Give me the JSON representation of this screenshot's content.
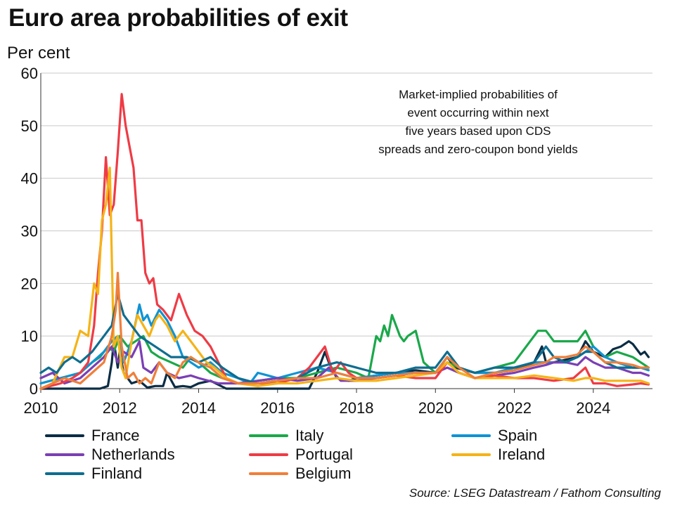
{
  "title": "Euro area probabilities of exit",
  "y_unit": "Per cent",
  "annotation": [
    "Market-implied probabilities of",
    "event occurring within next",
    "five years based upon CDS",
    "spreads and zero-coupon bond yields"
  ],
  "source": "Source: LSEG Datastream / Fathom Consulting",
  "chart_data": {
    "type": "line",
    "title": "Euro area probabilities of exit",
    "ylabel": "Per cent",
    "xlabel": "",
    "xlim": [
      2010,
      2025.5
    ],
    "ylim": [
      0,
      60
    ],
    "x_ticks": [
      2010,
      2012,
      2014,
      2016,
      2018,
      2020,
      2022,
      2024
    ],
    "y_ticks": [
      0,
      10,
      20,
      30,
      40,
      50,
      60
    ],
    "grid": "horizontal",
    "legend_position": "bottom",
    "series": [
      {
        "name": "France",
        "color": "#0b2d45",
        "x": [
          2010.0,
          2011.5,
          2011.7,
          2011.8,
          2011.85,
          2011.95,
          2012.0,
          2012.1,
          2012.2,
          2012.3,
          2012.5,
          2012.7,
          2012.9,
          2013.1,
          2013.2,
          2013.4,
          2013.6,
          2013.8,
          2014.0,
          2014.3,
          2014.7,
          2016.8,
          2017.0,
          2017.1,
          2017.2,
          2017.3,
          2017.5,
          2017.8,
          2018.0,
          2018.5,
          2019.0,
          2019.5,
          2020.0,
          2020.3,
          2020.5,
          2021.0,
          2021.5,
          2022.0,
          2022.5,
          2022.7,
          2022.8,
          2023.0,
          2023.3,
          2023.6,
          2023.8,
          2024.0,
          2024.3,
          2024.5,
          2024.7,
          2024.9,
          2025.0,
          2025.2,
          2025.3,
          2025.4
        ],
        "y": [
          0,
          0,
          0.5,
          5,
          9,
          4,
          7,
          3,
          2,
          1,
          1.5,
          0.2,
          0.5,
          0.5,
          3,
          0.3,
          0.5,
          0.3,
          1,
          1.5,
          0,
          0,
          3,
          5,
          7,
          5,
          2,
          1.5,
          2,
          2.5,
          3,
          3.5,
          3,
          6,
          4,
          3,
          3,
          3.5,
          5,
          8,
          5,
          5,
          5.5,
          6,
          9,
          7,
          6,
          7.5,
          8,
          9,
          8.5,
          6.5,
          7,
          6
        ]
      },
      {
        "name": "Italy",
        "color": "#1aa84a",
        "x": [
          2010.0,
          2010.5,
          2011.0,
          2011.3,
          2011.5,
          2011.7,
          2011.85,
          2012.0,
          2012.2,
          2012.4,
          2012.6,
          2012.8,
          2013.0,
          2013.3,
          2013.6,
          2013.8,
          2014.0,
          2014.3,
          2014.6,
          2015.0,
          2015.5,
          2016.0,
          2016.5,
          2017.0,
          2017.5,
          2018.0,
          2018.3,
          2018.5,
          2018.6,
          2018.7,
          2018.8,
          2018.9,
          2019.0,
          2019.1,
          2019.2,
          2019.3,
          2019.5,
          2019.7,
          2020.0,
          2020.3,
          2020.6,
          2021.0,
          2021.5,
          2022.0,
          2022.3,
          2022.6,
          2022.8,
          2023.0,
          2023.3,
          2023.6,
          2023.8,
          2024.0,
          2024.3,
          2024.6,
          2025.0,
          2025.2,
          2025.4
        ],
        "y": [
          1,
          2,
          3,
          5,
          6,
          8,
          7,
          10,
          8,
          9,
          10,
          7,
          6,
          5,
          4,
          6,
          5,
          3,
          2,
          1,
          1.5,
          2,
          2,
          3,
          4,
          3,
          2,
          10,
          9,
          12,
          10,
          14,
          12,
          10,
          9,
          10,
          11,
          5,
          3,
          5,
          4,
          3,
          4,
          5,
          8,
          11,
          11,
          9,
          9,
          9,
          11,
          8,
          6,
          7,
          6,
          5,
          4
        ]
      },
      {
        "name": "Spain",
        "color": "#0f93d4",
        "x": [
          2010.0,
          2010.5,
          2011.0,
          2011.3,
          2011.6,
          2011.8,
          2011.95,
          2012.1,
          2012.3,
          2012.5,
          2012.6,
          2012.7,
          2012.8,
          2013.0,
          2013.2,
          2013.4,
          2013.6,
          2013.8,
          2014.0,
          2014.3,
          2014.6,
          2015.0,
          2015.3,
          2015.5,
          2016.0,
          2016.5,
          2017.0,
          2017.5,
          2018.0,
          2018.5,
          2019.0,
          2019.5,
          2020.0,
          2020.3,
          2020.6,
          2021.0,
          2021.5,
          2022.0,
          2022.5,
          2022.8,
          2023.0,
          2023.3,
          2023.6,
          2023.8,
          2024.0,
          2024.3,
          2024.6,
          2025.0,
          2025.2,
          2025.4
        ],
        "y": [
          1,
          2,
          3,
          5,
          7,
          9,
          10,
          5,
          9,
          16,
          13,
          14,
          12,
          15,
          13,
          10,
          6,
          5,
          4,
          5,
          3,
          2,
          1,
          3,
          2,
          3,
          4,
          3,
          2,
          2.5,
          3,
          3,
          3,
          6,
          4,
          3,
          3,
          4,
          5,
          5,
          5,
          5,
          6,
          7,
          8,
          6,
          5,
          4,
          4,
          3.5
        ]
      },
      {
        "name": "Netherlands",
        "color": "#7b3fb5",
        "x": [
          2010.0,
          2010.3,
          2010.6,
          2011.0,
          2011.3,
          2011.6,
          2011.8,
          2011.95,
          2012.1,
          2012.3,
          2012.5,
          2012.6,
          2012.8,
          2013.0,
          2013.2,
          2013.5,
          2013.8,
          2014.0,
          2014.5,
          2015.0,
          2015.5,
          2016.0,
          2016.5,
          2017.0,
          2017.3,
          2017.6,
          2018.0,
          2018.5,
          2019.0,
          2019.5,
          2020.0,
          2020.3,
          2020.6,
          2021.0,
          2021.5,
          2022.0,
          2022.5,
          2022.8,
          2023.0,
          2023.3,
          2023.6,
          2023.8,
          2024.0,
          2024.3,
          2024.6,
          2025.0,
          2025.2,
          2025.4
        ],
        "y": [
          2,
          3,
          1,
          2,
          4,
          6,
          8,
          5,
          7,
          6,
          9,
          4,
          3,
          5,
          3,
          2,
          2.5,
          2,
          1,
          1,
          1.5,
          2,
          1.5,
          2,
          4,
          1.5,
          1.5,
          2,
          2.5,
          3,
          3,
          4,
          3,
          2,
          2.5,
          3,
          4,
          4.5,
          5,
          5,
          4.5,
          6,
          5,
          4,
          4,
          3,
          3,
          2.5
        ]
      },
      {
        "name": "Portugal",
        "color": "#ef3b45",
        "x": [
          2010.0,
          2010.5,
          2010.8,
          2011.0,
          2011.2,
          2011.35,
          2011.45,
          2011.55,
          2011.65,
          2011.75,
          2011.85,
          2011.95,
          2012.05,
          2012.15,
          2012.25,
          2012.35,
          2012.45,
          2012.55,
          2012.65,
          2012.75,
          2012.85,
          2012.95,
          2013.1,
          2013.3,
          2013.5,
          2013.7,
          2013.9,
          2014.1,
          2014.3,
          2014.5,
          2014.7,
          2015.0,
          2015.5,
          2016.0,
          2016.5,
          2016.8,
          2017.0,
          2017.2,
          2017.4,
          2017.6,
          2017.8,
          2018.0,
          2018.5,
          2019.0,
          2019.5,
          2020.0,
          2020.3,
          2020.6,
          2021.0,
          2021.5,
          2022.0,
          2022.5,
          2023.0,
          2023.5,
          2023.8,
          2024.0,
          2024.3,
          2024.6,
          2025.0,
          2025.2,
          2025.4
        ],
        "y": [
          0,
          1,
          2,
          3,
          5,
          12,
          22,
          30,
          44,
          33,
          35,
          45,
          56,
          50,
          46,
          42,
          32,
          32,
          22,
          20,
          21,
          16,
          15,
          13,
          18,
          14,
          11,
          10,
          8,
          5,
          2,
          1,
          1,
          1,
          2,
          4,
          6,
          8,
          3,
          5,
          3,
          2,
          2,
          2.5,
          2,
          2,
          5,
          3,
          2,
          2.5,
          2,
          2,
          1.5,
          2,
          4,
          1,
          1,
          0.5,
          0.8,
          1,
          0.8
        ]
      },
      {
        "name": "Ireland",
        "color": "#f5b316",
        "x": [
          2010.0,
          2010.3,
          2010.6,
          2010.8,
          2011.0,
          2011.2,
          2011.35,
          2011.45,
          2011.55,
          2011.65,
          2011.75,
          2011.85,
          2011.95,
          2012.05,
          2012.15,
          2012.3,
          2012.45,
          2012.6,
          2012.75,
          2012.9,
          2013.0,
          2013.2,
          2013.4,
          2013.6,
          2013.8,
          2014.0,
          2014.2,
          2014.4,
          2014.7,
          2015.0,
          2015.5,
          2016.0,
          2016.5,
          2017.0,
          2017.5,
          2018.0,
          2018.5,
          2019.0,
          2019.5,
          2020.0,
          2020.3,
          2020.6,
          2021.0,
          2021.5,
          2022.0,
          2022.5,
          2023.0,
          2023.5,
          2023.8,
          2024.0,
          2024.3,
          2024.6,
          2025.0,
          2025.2,
          2025.4
        ],
        "y": [
          0,
          1,
          6,
          6,
          11,
          10,
          20,
          18,
          32,
          35,
          42,
          8,
          10,
          4,
          2,
          9,
          14,
          12,
          10,
          13,
          14,
          12,
          9,
          11,
          9,
          7,
          5,
          4,
          2,
          1,
          0.5,
          1,
          1,
          1.5,
          2,
          1.5,
          1.5,
          2,
          2.5,
          3,
          5,
          3,
          2,
          2,
          2,
          2.5,
          2,
          1.5,
          2,
          2,
          1.5,
          1.5,
          1.5,
          1.5,
          1
        ]
      },
      {
        "name": "Finland",
        "color": "#0e6d8f",
        "x": [
          2010.0,
          2010.2,
          2010.4,
          2010.6,
          2010.8,
          2011.0,
          2011.3,
          2011.6,
          2011.8,
          2011.95,
          2012.1,
          2012.3,
          2012.5,
          2012.7,
          2012.9,
          2013.1,
          2013.3,
          2013.5,
          2013.7,
          2014.0,
          2014.3,
          2014.6,
          2015.0,
          2015.5,
          2016.0,
          2016.5,
          2017.0,
          2017.5,
          2018.0,
          2018.5,
          2019.0,
          2019.5,
          2020.0,
          2020.3,
          2020.6,
          2021.0,
          2021.5,
          2022.0,
          2022.5,
          2022.8,
          2023.0,
          2023.3,
          2023.6,
          2023.8,
          2024.0,
          2024.3,
          2024.6,
          2025.0,
          2025.2,
          2025.4
        ],
        "y": [
          3,
          4,
          3,
          5,
          6,
          5,
          7,
          10,
          12,
          18,
          14,
          12,
          10,
          9,
          8,
          7,
          6,
          6,
          6,
          5,
          6,
          4,
          2,
          1,
          1.5,
          2,
          4,
          5,
          4,
          3,
          3,
          4,
          4,
          7,
          4,
          3,
          4,
          4,
          5,
          8,
          6,
          5,
          6,
          7,
          7,
          5,
          4,
          4,
          4,
          4
        ]
      },
      {
        "name": "Belgium",
        "color": "#ef7f3a",
        "x": [
          2010.0,
          2010.3,
          2010.6,
          2011.0,
          2011.3,
          2011.6,
          2011.8,
          2011.9,
          2011.95,
          2012.05,
          2012.2,
          2012.35,
          2012.5,
          2012.65,
          2012.8,
          2013.0,
          2013.2,
          2013.4,
          2013.6,
          2013.8,
          2014.0,
          2014.3,
          2014.6,
          2015.0,
          2015.5,
          2016.0,
          2016.5,
          2017.0,
          2017.5,
          2018.0,
          2018.5,
          2019.0,
          2019.5,
          2020.0,
          2020.3,
          2020.6,
          2021.0,
          2021.5,
          2022.0,
          2022.5,
          2022.8,
          2023.0,
          2023.3,
          2023.6,
          2023.8,
          2024.0,
          2024.3,
          2024.6,
          2025.0,
          2025.2,
          2025.4
        ],
        "y": [
          0,
          1,
          2,
          1,
          3,
          5,
          10,
          15,
          22,
          8,
          2,
          3,
          1,
          2,
          1,
          5,
          3,
          2,
          5,
          6,
          5,
          4,
          2,
          1,
          1,
          1.5,
          2,
          2,
          3,
          2,
          2,
          2.5,
          3,
          3,
          6,
          4,
          2,
          3,
          3.5,
          4.5,
          5,
          6,
          6,
          6.5,
          8,
          7,
          5,
          5,
          4.5,
          4,
          4
        ]
      }
    ]
  }
}
